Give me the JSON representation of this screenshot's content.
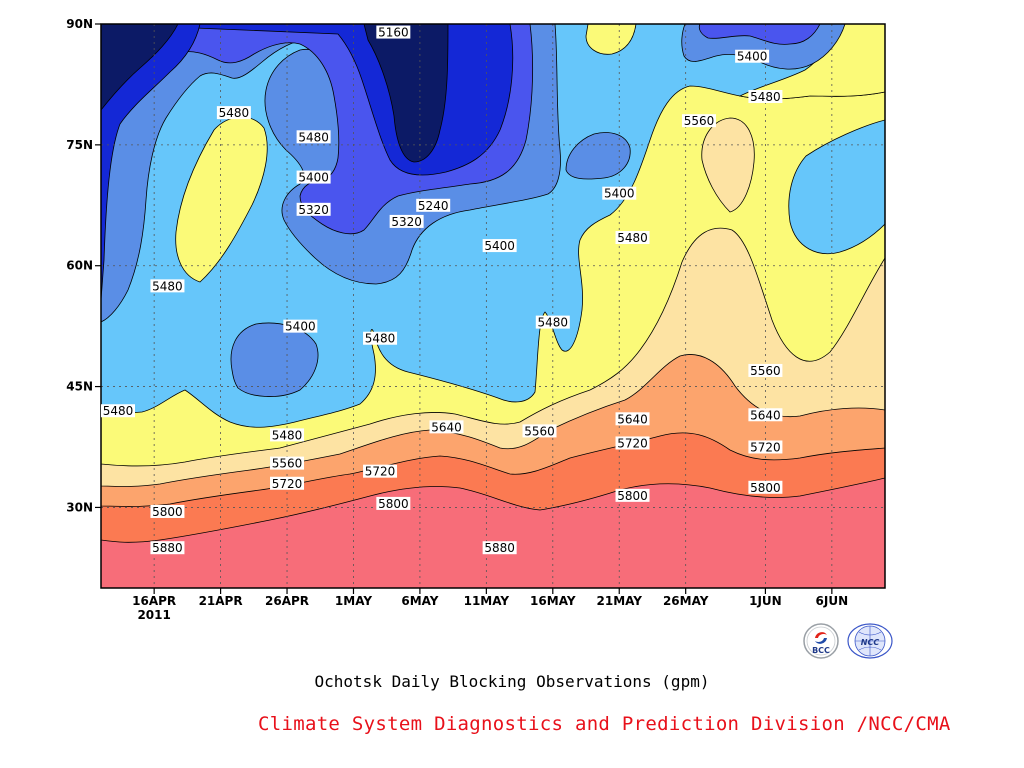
{
  "chart_data": {
    "type": "contour",
    "title": "Ochotsk Daily Blocking Observations (gpm)",
    "year_label": "2011",
    "x_ticks": [
      "16APR",
      "21APR",
      "26APR",
      "1MAY",
      "6MAY",
      "11MAY",
      "16MAY",
      "21MAY",
      "26MAY",
      "1JUN",
      "6JUN"
    ],
    "y_ticks": [
      "30N",
      "45N",
      "60N",
      "75N",
      "90N"
    ],
    "ylim": [
      20,
      90
    ],
    "xlim": [
      "2011-04-12",
      "2011-06-10"
    ],
    "contour_levels": [
      5160,
      5240,
      5320,
      5400,
      5480,
      5560,
      5640,
      5720,
      5800,
      5880
    ],
    "contour_labels": [
      {
        "value": "5160"
      },
      {
        "value": "5400"
      },
      {
        "value": "5480"
      },
      {
        "value": "5480"
      },
      {
        "value": "5480"
      },
      {
        "value": "5560"
      },
      {
        "value": "5400"
      },
      {
        "value": "5320"
      },
      {
        "value": "5240"
      },
      {
        "value": "5320"
      },
      {
        "value": "5400"
      },
      {
        "value": "5400"
      },
      {
        "value": "5480"
      },
      {
        "value": "5480"
      },
      {
        "value": "5400"
      },
      {
        "value": "5480"
      },
      {
        "value": "5480"
      },
      {
        "value": "5560"
      },
      {
        "value": "5480"
      },
      {
        "value": "5640"
      },
      {
        "value": "5640"
      },
      {
        "value": "5560"
      },
      {
        "value": "5480"
      },
      {
        "value": "5560"
      },
      {
        "value": "5640"
      },
      {
        "value": "5720"
      },
      {
        "value": "5720"
      },
      {
        "value": "5720"
      },
      {
        "value": "5720"
      },
      {
        "value": "5800"
      },
      {
        "value": "5800"
      },
      {
        "value": "5800"
      },
      {
        "value": "5800"
      },
      {
        "value": "5880"
      },
      {
        "value": "5880"
      }
    ]
  },
  "footer": {
    "credit": "Climate System Diagnostics and Prediction Division /NCC/CMA",
    "logo_bcc_text": "BCC",
    "logo_ncc_text": "NCC"
  },
  "colors": {
    "c5160": "#0c1a66",
    "c5240": "#1428d6",
    "c5320": "#4a55ee",
    "c5400": "#5a8ee6",
    "c5480": "#66c6fa",
    "c5560": "#fbfa78",
    "c5640": "#fde3a3",
    "c5720": "#fca46d",
    "c5800": "#fb7a52",
    "c5880": "#f76d79",
    "c5960": "#f2344b",
    "credit": "#e8101a"
  }
}
